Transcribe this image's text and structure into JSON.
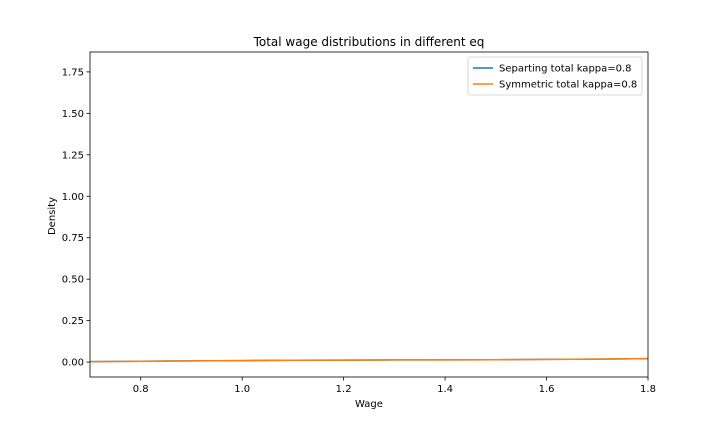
{
  "chart_data": {
    "type": "line",
    "title": "Total wage distributions in different eq",
    "xlabel": "Wage",
    "ylabel": "Density",
    "xlim": [
      0.7,
      1.8
    ],
    "ylim": [
      -0.09,
      1.87
    ],
    "xticks": [
      0.8,
      1.0,
      1.2,
      1.4,
      1.6,
      1.8
    ],
    "xtick_labels": [
      "0.8",
      "1.0",
      "1.2",
      "1.4",
      "1.6",
      "1.8"
    ],
    "yticks": [
      0.0,
      0.25,
      0.5,
      0.75,
      1.0,
      1.25,
      1.5,
      1.75
    ],
    "ytick_labels": [
      "0.00",
      "0.25",
      "0.50",
      "0.75",
      "1.00",
      "1.25",
      "1.50",
      "1.75"
    ],
    "grid": false,
    "legend_position": "top-right",
    "series": [
      {
        "name": "Separting total kappa=0.8",
        "color": "#1f77b4",
        "x": [
          0.7,
          0.8,
          0.9,
          1.0,
          1.1,
          1.2,
          1.3,
          1.4,
          1.5,
          1.6,
          1.7,
          1.8
        ],
        "y": [
          0.003,
          0.005,
          0.007,
          0.009,
          0.011,
          0.012,
          0.013,
          0.013,
          0.014,
          0.016,
          0.018,
          0.021
        ]
      },
      {
        "name": "Symmetric total kappa=0.8",
        "color": "#ff7f0e",
        "x": [
          0.7,
          0.8,
          0.9,
          1.0,
          1.1,
          1.2,
          1.3,
          1.4,
          1.5,
          1.6,
          1.7,
          1.8
        ],
        "y": [
          0.003,
          0.005,
          0.007,
          0.009,
          0.011,
          0.012,
          0.013,
          0.013,
          0.014,
          0.016,
          0.018,
          0.021
        ]
      }
    ]
  }
}
